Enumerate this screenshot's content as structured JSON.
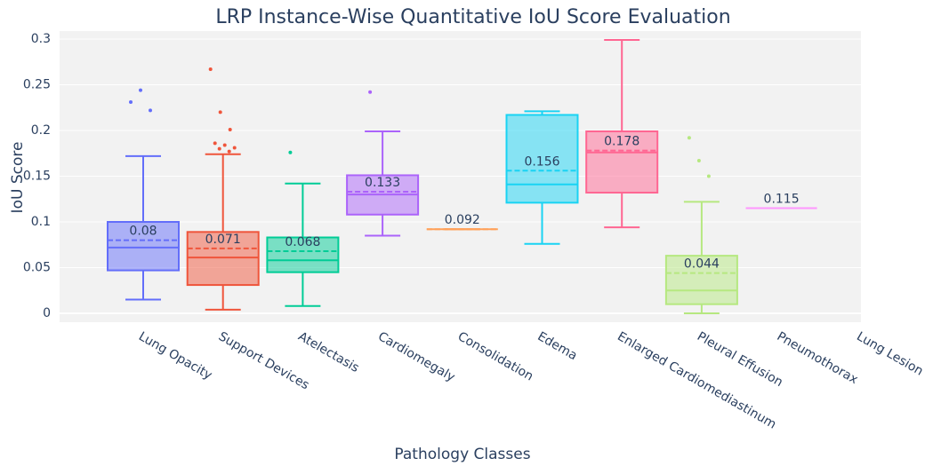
{
  "chart_data": {
    "type": "box",
    "title": "LRP Instance-Wise Quantitative IoU Score Evaluation",
    "x_label": "Pathology Classes",
    "y_label": "IoU Score",
    "ylim": [
      -0.0097,
      0.3087
    ],
    "yticks": [
      0,
      0.05,
      0.1,
      0.15,
      0.2,
      0.25,
      0.3
    ],
    "grid": true,
    "categories": [
      "Lung Opacity",
      "Support Devices",
      "Atelectasis",
      "Cardiomegaly",
      "Consolidation",
      "Edema",
      "Enlarged Cardiomediastinum",
      "Pleural Effusion",
      "Pneumothorax",
      "Lung Lesion"
    ],
    "series": [
      {
        "color": "#636efa",
        "min": 0.015,
        "q1": 0.047,
        "median": 0.072,
        "q3": 0.1,
        "max": 0.172,
        "mean": 0.08,
        "outliers": [
          0.231,
          0.244,
          0.222
        ]
      },
      {
        "color": "#ef553b",
        "min": 0.004,
        "q1": 0.031,
        "median": 0.061,
        "q3": 0.089,
        "max": 0.174,
        "mean": 0.071,
        "outliers": [
          0.267,
          0.22,
          0.201,
          0.186,
          0.184,
          0.181,
          0.18,
          0.177
        ]
      },
      {
        "color": "#00cc96",
        "min": 0.008,
        "q1": 0.045,
        "median": 0.058,
        "q3": 0.083,
        "max": 0.142,
        "mean": 0.068,
        "outliers": [
          0.176
        ]
      },
      {
        "color": "#ab63fa",
        "min": 0.085,
        "q1": 0.108,
        "median": 0.13,
        "q3": 0.151,
        "max": 0.199,
        "mean": 0.133,
        "outliers": [
          0.242
        ]
      },
      {
        "color": "#ffa15a",
        "min": 0.092,
        "q1": 0.092,
        "median": 0.092,
        "q3": 0.092,
        "max": 0.092,
        "mean": 0.092,
        "outliers": []
      },
      {
        "color": "#19d3f3",
        "min": 0.076,
        "q1": 0.121,
        "median": 0.141,
        "q3": 0.217,
        "max": 0.221,
        "mean": 0.156,
        "outliers": []
      },
      {
        "color": "#ff6692",
        "min": 0.094,
        "q1": 0.132,
        "median": 0.176,
        "q3": 0.199,
        "max": 0.299,
        "mean": 0.178,
        "outliers": []
      },
      {
        "color": "#b6e880",
        "min": 0,
        "q1": 0.01,
        "median": 0.025,
        "q3": 0.063,
        "max": 0.122,
        "mean": 0.044,
        "outliers": [
          0.192,
          0.167,
          0.15
        ]
      },
      {
        "color": "#ff97ff",
        "min": 0.115,
        "q1": 0.115,
        "median": 0.115,
        "q3": 0.115,
        "max": 0.115,
        "mean": 0.115,
        "outliers": []
      },
      {
        "color": "#fecb52",
        "min": null,
        "q1": null,
        "median": null,
        "q3": null,
        "max": null,
        "mean": null,
        "outliers": []
      }
    ]
  }
}
